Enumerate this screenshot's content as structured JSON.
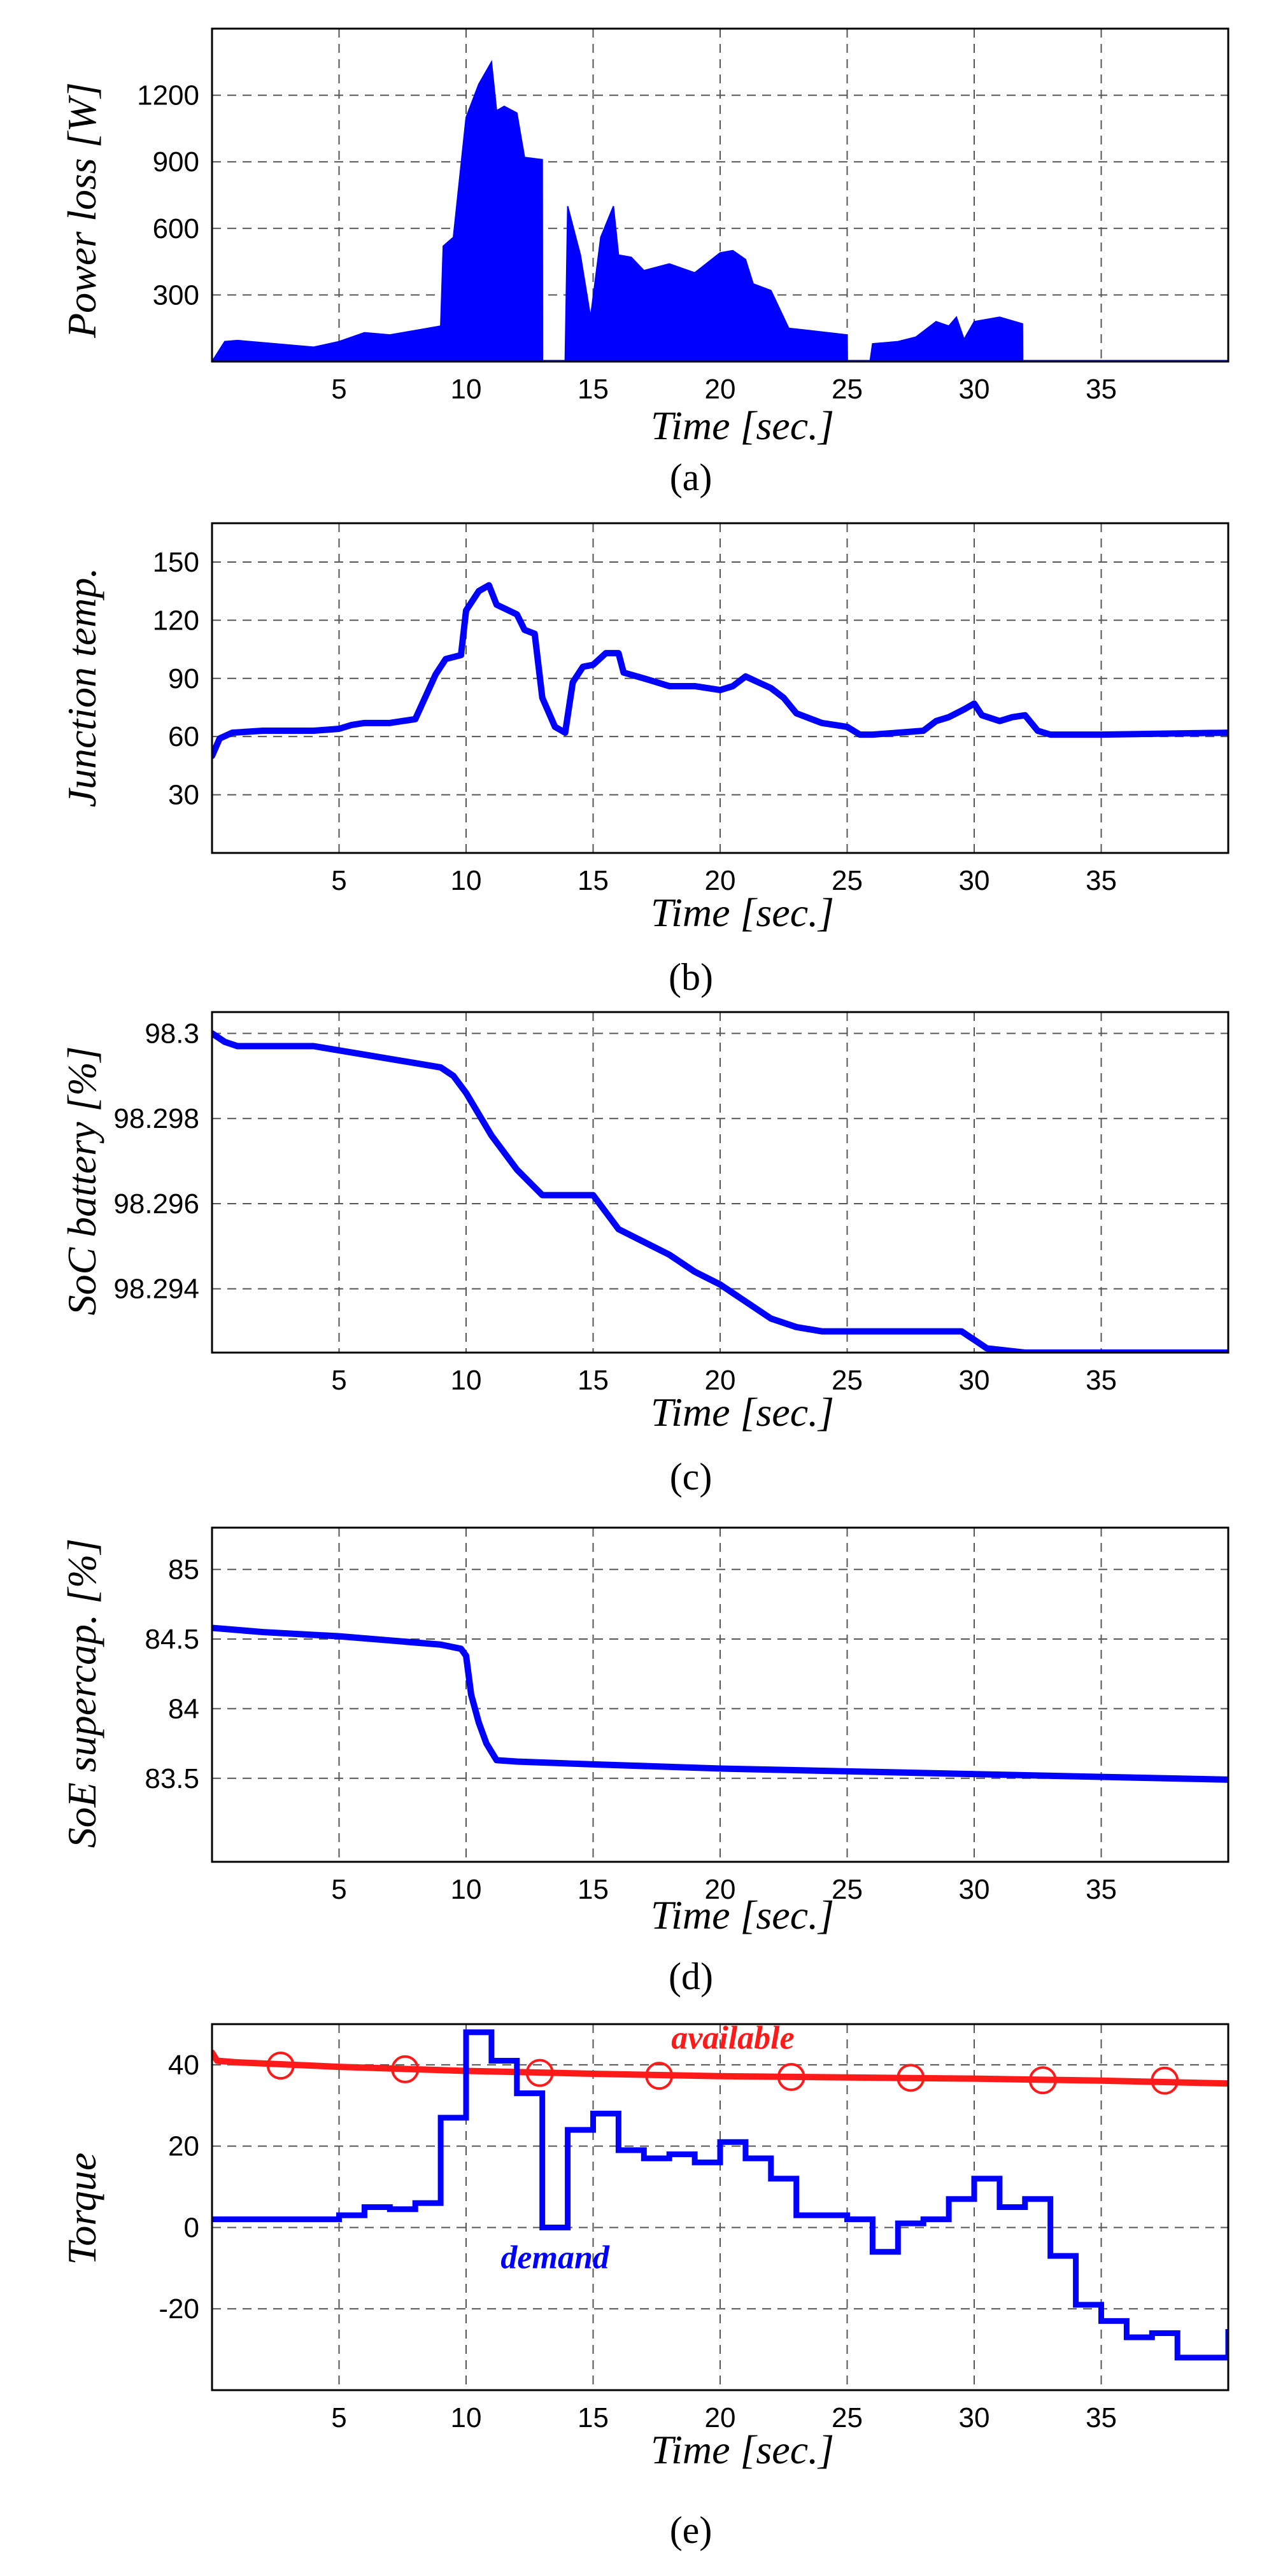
{
  "colors": {
    "series_blue": "#0000ff",
    "series_red": "#ff1a1a",
    "grid": "#555555",
    "axis": "#000000"
  },
  "chart_data": [
    {
      "id": "a",
      "type": "area",
      "caption": "(a)",
      "title": "",
      "xlabel": "Time [sec.]",
      "ylabel": "Power loss [W]",
      "xlim": [
        0,
        40
      ],
      "ylim": [
        0,
        1500
      ],
      "xticks": [
        5,
        10,
        15,
        20,
        25,
        30,
        35
      ],
      "yticks": [
        300,
        600,
        900,
        1200
      ],
      "ytick_labels": [
        "300",
        "600",
        "900",
        "1200"
      ],
      "grid": true,
      "series": [
        {
          "name": "power loss",
          "color": "#0000ff",
          "x": [
            0,
            0.5,
            1,
            2,
            3,
            4,
            5,
            6,
            7,
            8,
            9,
            9.1,
            9.5,
            10,
            10.5,
            11,
            11.2,
            11.5,
            12,
            12.3,
            13,
            13.01,
            13.9,
            14,
            14.5,
            14.9,
            15.3,
            15.8,
            16,
            16.5,
            17,
            18,
            19,
            20,
            20.5,
            21,
            21.3,
            22,
            22.7,
            23.5,
            25,
            25.01,
            25.9,
            26,
            27,
            27.7,
            28.5,
            29,
            29.3,
            29.6,
            30,
            31,
            31.9,
            31.91,
            40
          ],
          "y": [
            0,
            90,
            95,
            85,
            75,
            65,
            90,
            130,
            120,
            140,
            160,
            520,
            560,
            1100,
            1250,
            1350,
            1130,
            1150,
            1120,
            920,
            910,
            0,
            0,
            700,
            480,
            200,
            560,
            700,
            480,
            470,
            410,
            440,
            400,
            490,
            500,
            460,
            350,
            320,
            150,
            140,
            120,
            0,
            0,
            80,
            90,
            110,
            180,
            160,
            200,
            100,
            180,
            200,
            170,
            0,
            0
          ]
        }
      ]
    },
    {
      "id": "b",
      "type": "line",
      "caption": "(b)",
      "title": "",
      "xlabel": "Time [sec.]",
      "ylabel": "Junction temp.",
      "xlim": [
        0,
        40
      ],
      "ylim": [
        0,
        170
      ],
      "xticks": [
        5,
        10,
        15,
        20,
        25,
        30,
        35
      ],
      "yticks": [
        30,
        60,
        90,
        120,
        150
      ],
      "ytick_labels": [
        "30",
        "60",
        "90",
        "120",
        "150"
      ],
      "grid": true,
      "series": [
        {
          "name": "junction temperature",
          "color": "#0000ff",
          "x": [
            0,
            0.3,
            0.8,
            2,
            4,
            5,
            5.5,
            6,
            7,
            8,
            8.8,
            9.2,
            9.8,
            10,
            10.5,
            10.9,
            11.2,
            12,
            12.3,
            12.7,
            13,
            13.5,
            13.9,
            14.2,
            14.6,
            15,
            15.5,
            16,
            16.2,
            17,
            18,
            19,
            20,
            20.5,
            21,
            21.5,
            22,
            22.5,
            23,
            24,
            25,
            25.5,
            26,
            27,
            28,
            28.5,
            29,
            29.6,
            30,
            30.3,
            31,
            31.5,
            32,
            32.5,
            33,
            35,
            40
          ],
          "y": [
            50,
            59,
            62,
            63,
            63,
            64,
            66,
            67,
            67,
            69,
            92,
            100,
            102,
            125,
            135,
            138,
            128,
            123,
            115,
            113,
            80,
            65,
            62,
            88,
            96,
            97,
            103,
            103,
            93,
            90,
            86,
            86,
            84,
            86,
            91,
            88,
            85,
            80,
            72,
            67,
            65,
            61,
            61,
            62,
            63,
            68,
            70,
            74,
            77,
            71,
            68,
            70,
            71,
            63,
            61,
            61,
            62
          ]
        }
      ]
    },
    {
      "id": "c",
      "type": "line",
      "caption": "(c)",
      "title": "",
      "xlabel": "Time [sec.]",
      "ylabel": "SoC battery [%]",
      "xlim": [
        0,
        40
      ],
      "ylim": [
        98.2925,
        98.3005
      ],
      "xticks": [
        5,
        10,
        15,
        20,
        25,
        30,
        35
      ],
      "yticks": [
        98.294,
        98.296,
        98.298,
        98.3
      ],
      "ytick_labels": [
        "98.294",
        "98.296",
        "98.298",
        "98.3"
      ],
      "grid": true,
      "series": [
        {
          "name": "state of charge",
          "color": "#0000ff",
          "x": [
            0,
            0.5,
            1,
            2,
            4,
            5,
            7,
            9,
            9.5,
            10,
            11,
            12,
            13,
            14,
            15,
            15.5,
            16,
            17,
            18,
            19,
            20,
            21,
            22,
            23,
            24,
            25,
            27,
            29.5,
            30.5,
            32,
            35,
            40
          ],
          "y": [
            98.3,
            98.2998,
            98.2997,
            98.2997,
            98.2997,
            98.2996,
            98.2994,
            98.2992,
            98.299,
            98.2986,
            98.2976,
            98.2968,
            98.2962,
            98.2962,
            98.2962,
            98.2958,
            98.2954,
            98.2951,
            98.2948,
            98.2944,
            98.2941,
            98.2937,
            98.2933,
            98.2931,
            98.293,
            98.293,
            98.293,
            98.293,
            98.2926,
            98.2925,
            98.2925,
            98.2925
          ]
        }
      ]
    },
    {
      "id": "d",
      "type": "line",
      "caption": "(d)",
      "title": "",
      "xlabel": "Time [sec.]",
      "ylabel": "SoE supercap. [%]",
      "xlim": [
        0,
        40
      ],
      "ylim": [
        82.9,
        85.3
      ],
      "xticks": [
        5,
        10,
        15,
        20,
        25,
        30,
        35
      ],
      "yticks": [
        83.5,
        84,
        84.5,
        85
      ],
      "ytick_labels": [
        "83.5",
        "84",
        "84.5",
        "85"
      ],
      "grid": true,
      "series": [
        {
          "name": "state of energy",
          "color": "#0000ff",
          "x": [
            0,
            2,
            5,
            7,
            9,
            9.8,
            10,
            10.2,
            10.5,
            10.8,
            11.2,
            12,
            15,
            20,
            25,
            30,
            35,
            40
          ],
          "y": [
            84.58,
            84.55,
            84.52,
            84.49,
            84.46,
            84.43,
            84.38,
            84.1,
            83.9,
            83.75,
            83.63,
            83.62,
            83.6,
            83.57,
            83.55,
            83.53,
            83.51,
            83.49
          ]
        }
      ]
    },
    {
      "id": "e",
      "type": "line",
      "caption": "(e)",
      "title": "",
      "xlabel": "Time [sec.]",
      "ylabel": "Torque",
      "xlim": [
        0,
        40
      ],
      "ylim": [
        -40,
        50
      ],
      "xticks": [
        5,
        10,
        15,
        20,
        25,
        30,
        35
      ],
      "yticks": [
        -20,
        0,
        20,
        40
      ],
      "ytick_labels": [
        "-20",
        "0",
        "20",
        "40"
      ],
      "grid": true,
      "annotations": [
        {
          "text": "available",
          "x": 20.5,
          "y": 44,
          "color": "#ff1a1a"
        },
        {
          "text": "demand",
          "x": 13.5,
          "y": -10,
          "color": "#0000ff"
        }
      ],
      "series": [
        {
          "name": "available",
          "color": "#ff1a1a",
          "x": [
            0,
            0.2,
            1,
            5,
            10,
            15,
            20,
            25,
            30,
            35,
            40
          ],
          "y": [
            43,
            41,
            40.6,
            39.5,
            38.5,
            37.8,
            37.2,
            36.9,
            36.6,
            36.1,
            35.4
          ],
          "markers_x": [
            2.7,
            7.6,
            12.9,
            17.6,
            22.8,
            27.5,
            32.7,
            37.5
          ],
          "markers_y": [
            39.8,
            38.9,
            38,
            37.3,
            37,
            36.8,
            36.2,
            36.1
          ]
        },
        {
          "name": "demand",
          "color": "#0000ff",
          "step_x": [
            0,
            5,
            6,
            7,
            8,
            9,
            10,
            11,
            12,
            13,
            14,
            15,
            16,
            17,
            18,
            19,
            20,
            21,
            22,
            23,
            24,
            25,
            26,
            27,
            28,
            29,
            30,
            31,
            32,
            33,
            34,
            35,
            36,
            37,
            38,
            39
          ],
          "step_y": [
            2,
            3,
            5,
            4.5,
            6,
            27,
            48,
            41,
            33,
            0,
            24,
            28,
            19,
            17,
            18,
            16,
            21,
            17,
            12,
            3,
            3,
            2,
            -6,
            1,
            2,
            7,
            12,
            5,
            7,
            -7,
            -19,
            -23,
            -27,
            -26,
            -32,
            -32
          ],
          "step_end": 40,
          "step_end_y": -25
        }
      ]
    }
  ]
}
